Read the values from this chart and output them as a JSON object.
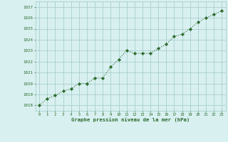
{
  "x": [
    0,
    1,
    2,
    3,
    4,
    5,
    6,
    7,
    8,
    9,
    10,
    11,
    12,
    13,
    14,
    15,
    16,
    17,
    18,
    19,
    20,
    21,
    22,
    23
  ],
  "y": [
    1018.0,
    1018.6,
    1018.9,
    1019.3,
    1019.5,
    1020.0,
    1020.0,
    1020.5,
    1020.5,
    1021.5,
    1022.2,
    1023.0,
    1022.75,
    1022.75,
    1022.75,
    1023.2,
    1023.6,
    1024.3,
    1024.5,
    1025.0,
    1025.6,
    1026.0,
    1026.3,
    1026.65
  ],
  "line_color": "#2d6a2d",
  "marker_color": "#2d6a2d",
  "bg_color": "#d8f0f0",
  "grid_color": "#a0c8c8",
  "xlabel": "Graphe pression niveau de la mer (hPa)",
  "xlabel_color": "#2d6a2d",
  "tick_color": "#2d6a2d",
  "ylim": [
    1017.5,
    1027.5
  ],
  "yticks": [
    1018,
    1019,
    1020,
    1021,
    1022,
    1023,
    1024,
    1025,
    1026,
    1027
  ],
  "xlim": [
    -0.5,
    23.5
  ],
  "xticks": [
    0,
    1,
    2,
    3,
    4,
    5,
    6,
    7,
    8,
    9,
    10,
    11,
    12,
    13,
    14,
    15,
    16,
    17,
    18,
    19,
    20,
    21,
    22,
    23
  ]
}
